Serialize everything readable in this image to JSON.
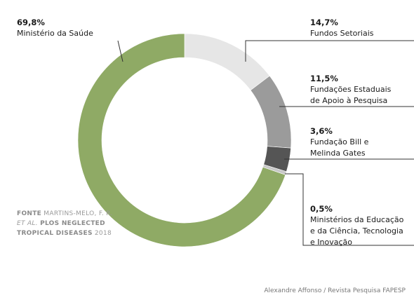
{
  "chart_data": {
    "type": "pie",
    "donut": true,
    "slices": [
      {
        "label": "Fundos Setoriais",
        "value": 14.7,
        "pct_text": "14,7%",
        "color": "#e6e6e6"
      },
      {
        "label": "Fundações Estaduais\nde Apoio à Pesquisa",
        "value": 11.5,
        "pct_text": "11,5%",
        "color": "#9b9b9b"
      },
      {
        "label": "Fundação Bill e\nMelinda Gates",
        "value": 3.6,
        "pct_text": "3,6%",
        "color": "#555555"
      },
      {
        "label": "Ministérios da Educação\ne da Ciência, Tecnologia\ne Inovação",
        "value": 0.5,
        "pct_text": "0,5%",
        "color": "#c8c8c8"
      },
      {
        "label": "Ministério da Saúde",
        "value": 69.8,
        "pct_text": "69,8%",
        "color": "#8faa65"
      }
    ]
  },
  "source": {
    "fonte": "FONTE",
    "authors": "MARTINS-MELO, F. R.",
    "etal": "ET AL.",
    "journal": "PLOS NEGLECTED TROPICAL DISEASES",
    "year": "2018"
  },
  "credit": "Alexandre Affonso / Revista Pesquisa FAPESP"
}
